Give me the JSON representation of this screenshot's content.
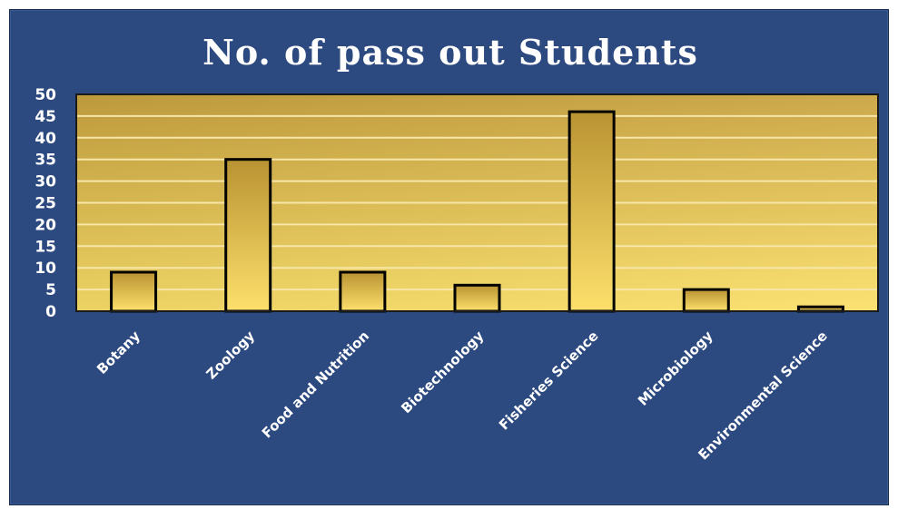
{
  "chart_data": {
    "type": "bar",
    "title": "No. of pass out Students",
    "categories": [
      "Botany",
      "Zoology",
      "Food and Nutrition",
      "Biotechnology",
      "Fisheries Science",
      "Microbiology",
      "Environmental Science"
    ],
    "values": [
      9,
      35,
      9,
      6,
      46,
      5,
      1
    ],
    "ylim": [
      0,
      50
    ],
    "yticks": [
      "0",
      "5",
      "10",
      "15",
      "20",
      "25",
      "30",
      "35",
      "40",
      "45",
      "50"
    ],
    "grid": true,
    "legend": "none",
    "colors": {
      "background": "#2c4a80",
      "plot_top": "#c9a340",
      "plot_bottom": "#fbe06a",
      "bar_top": "#b99332",
      "bar_bottom": "#fde06c",
      "gridline": "#f6e6a8",
      "bar_outline": "#000000",
      "text": "#ffffff"
    }
  }
}
